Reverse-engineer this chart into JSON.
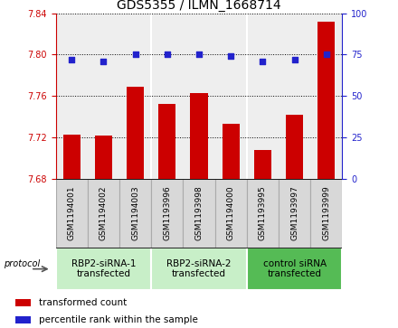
{
  "title": "GDS5355 / ILMN_1668714",
  "samples": [
    "GSM1194001",
    "GSM1194002",
    "GSM1194003",
    "GSM1193996",
    "GSM1193998",
    "GSM1194000",
    "GSM1193995",
    "GSM1193997",
    "GSM1193999"
  ],
  "red_values": [
    7.723,
    7.722,
    7.769,
    7.752,
    7.763,
    7.733,
    7.708,
    7.742,
    7.832
  ],
  "blue_values": [
    72,
    71,
    75,
    75,
    75,
    74,
    71,
    72,
    75
  ],
  "ylim_left": [
    7.68,
    7.84
  ],
  "ylim_right": [
    0,
    100
  ],
  "yticks_left": [
    7.68,
    7.72,
    7.76,
    7.8,
    7.84
  ],
  "yticks_right": [
    0,
    25,
    50,
    75,
    100
  ],
  "groups": [
    {
      "label": "RBP2-siRNA-1\ntransfected",
      "indices": [
        0,
        1,
        2
      ],
      "color": "#c8efc8"
    },
    {
      "label": "RBP2-siRNA-2\ntransfected",
      "indices": [
        3,
        4,
        5
      ],
      "color": "#c8efc8"
    },
    {
      "label": "control siRNA\ntransfected",
      "indices": [
        6,
        7,
        8
      ],
      "color": "#55bb55"
    }
  ],
  "bar_color": "#cc0000",
  "dot_color": "#2222cc",
  "sample_box_color": "#d8d8d8",
  "sample_box_edge": "#aaaaaa",
  "plot_bg_color": "#eeeeee",
  "legend_red": "transformed count",
  "legend_blue": "percentile rank within the sample",
  "protocol_label": "protocol",
  "title_fontsize": 10,
  "tick_fontsize": 7,
  "sample_fontsize": 6.5,
  "group_fontsize": 7.5,
  "legend_fontsize": 7.5
}
